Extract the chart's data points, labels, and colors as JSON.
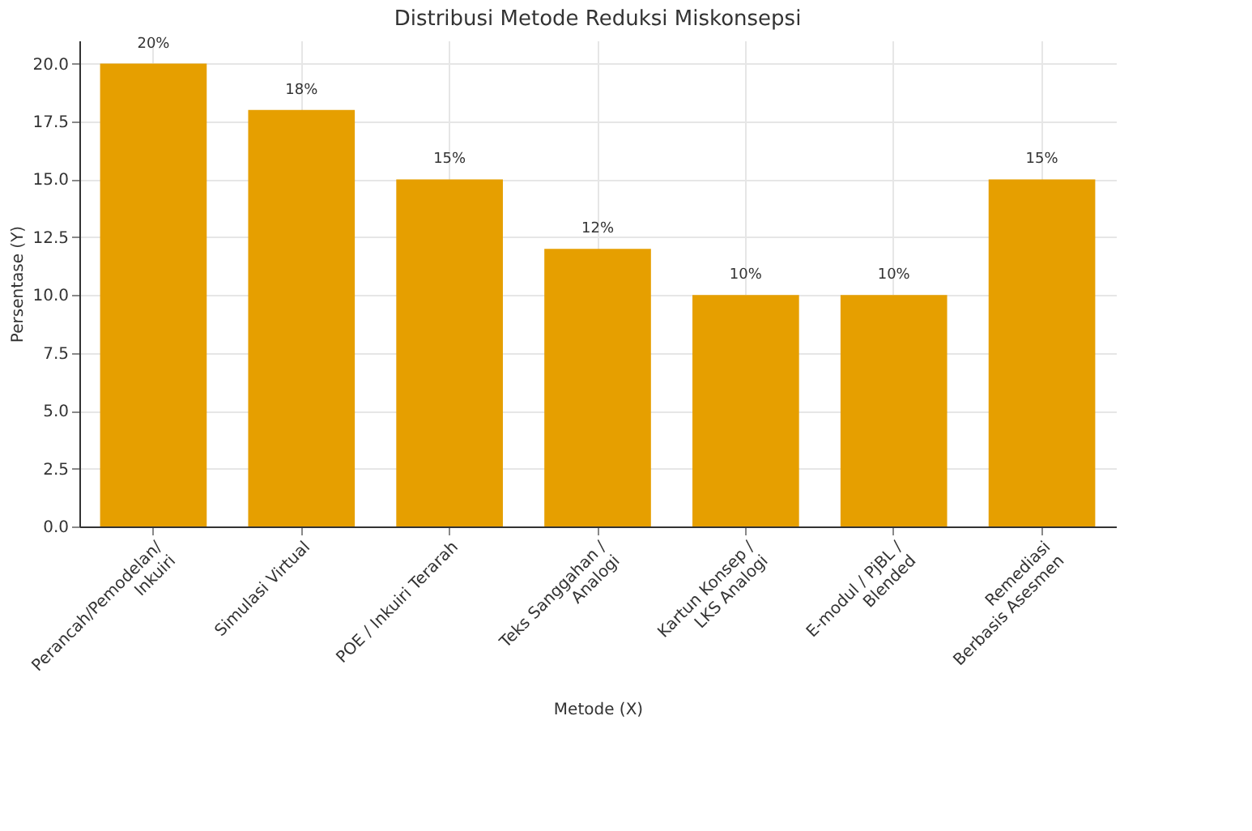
{
  "chart_data": {
    "type": "bar",
    "title": "Distribusi Metode Reduksi Miskonsepsi",
    "xlabel": "Metode (X)",
    "ylabel": "Persentase (Y)",
    "categories": [
      "Perancah/Pemodelan/\nInkuiri",
      "Simulasi Virtual",
      "POE / Inkuiri Terarah",
      "Teks Sanggahan /\nAnalogi",
      "Kartun Konsep /\nLKS Analogi",
      "E-modul / PjBL /\nBlended",
      "Remediasi\nBerbasis Asesmen"
    ],
    "values": [
      20,
      18,
      15,
      12,
      10,
      10,
      15
    ],
    "value_labels": [
      "20%",
      "18%",
      "15%",
      "12%",
      "10%",
      "10%",
      "15%"
    ],
    "color": "#e69f00",
    "ylim": [
      0,
      21
    ],
    "yticks": [
      {
        "value": 0,
        "label": "0.0"
      },
      2.5,
      {
        "value": 5,
        "label": "5.0"
      },
      7.5,
      {
        "value": 10,
        "label": "10.0"
      },
      12.5,
      {
        "value": 15,
        "label": "15.0"
      },
      17.5,
      {
        "value": 20,
        "label": "20.0"
      }
    ],
    "grid": true
  }
}
